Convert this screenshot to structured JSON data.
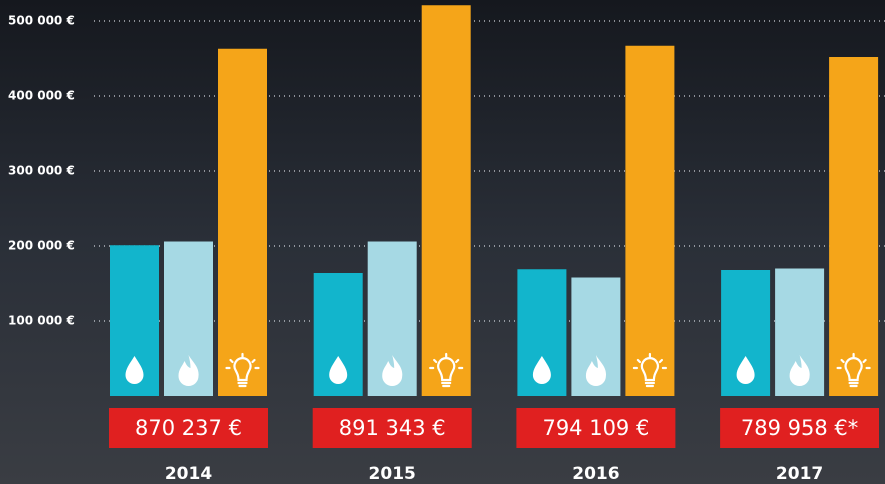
{
  "chart_data": {
    "type": "bar",
    "categories": [
      "2014",
      "2015",
      "2016",
      "2017"
    ],
    "series": [
      {
        "color": "#12b5cc",
        "values": [
          201000,
          164000,
          169000,
          168000
        ]
      },
      {
        "color": "#a6d9e4",
        "values": [
          206000,
          206000,
          158000,
          170000
        ]
      },
      {
        "color": "#f5a519",
        "values": [
          463000,
          521000,
          467000,
          452000
        ]
      }
    ],
    "totals": {
      "color": "#e02020",
      "values": [
        870237,
        891343,
        794109,
        789958
      ],
      "value_labels": [
        "870 237 €",
        "891 343 €",
        "794 109 €",
        "789 958 €*"
      ]
    },
    "ylim": [
      0,
      528000
    ],
    "yticks": [
      {
        "value": 100000,
        "label": "100 000 €"
      },
      {
        "value": 200000,
        "label": "200 000 €"
      },
      {
        "value": 300000,
        "label": "300 000 €"
      },
      {
        "value": 400000,
        "label": "400 000 €"
      },
      {
        "value": 500000,
        "label": "500 000 €"
      }
    ],
    "grid": true
  }
}
